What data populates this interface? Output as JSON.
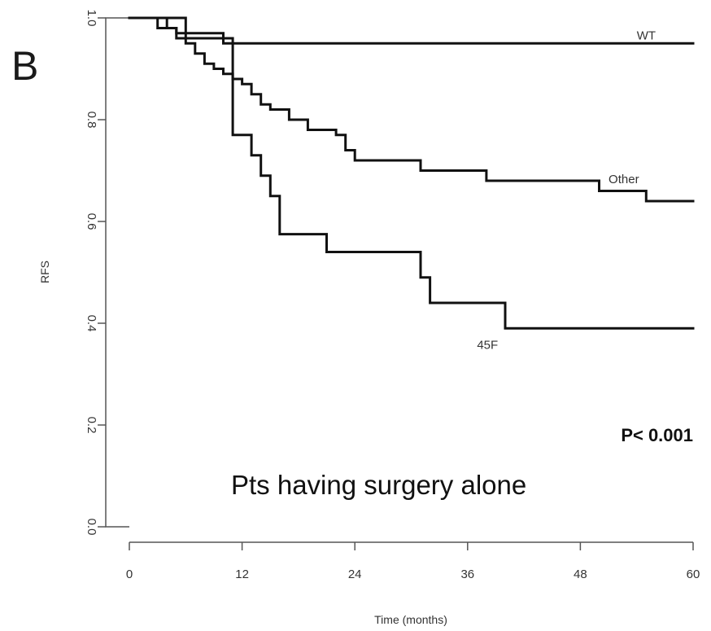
{
  "panel_label": "B",
  "caption": "Pts having surgery alone",
  "p_value": "P< 0.001",
  "chart_data": {
    "type": "line",
    "subtype": "kaplan-meier step curve",
    "title": "",
    "xlabel": "Time (months)",
    "ylabel": "RFS",
    "xlim": [
      0,
      60
    ],
    "ylim": [
      0.0,
      1.0
    ],
    "xticks": [
      0,
      12,
      24,
      36,
      48,
      60
    ],
    "xtick_labels": [
      "0",
      "12",
      "24",
      "36",
      "48",
      "60"
    ],
    "yticks": [
      0.0,
      0.2,
      0.4,
      0.6,
      0.8,
      1.0
    ],
    "ytick_labels": [
      "0.0",
      "0.2",
      "0.4",
      "0.6",
      "0.8",
      "1.0"
    ],
    "grid": false,
    "legend": "none (series labelled directly on curves)",
    "series": [
      {
        "name": "WT",
        "x": [
          0,
          3,
          3,
          5,
          5,
          10,
          10,
          60
        ],
        "y": [
          1.0,
          1.0,
          0.98,
          0.98,
          0.97,
          0.97,
          0.95,
          0.95
        ]
      },
      {
        "name": "Other",
        "x": [
          0,
          4,
          4,
          5,
          5,
          6,
          6,
          7,
          7,
          8,
          8,
          9,
          9,
          10,
          10,
          11,
          11,
          12,
          12,
          13,
          13,
          14,
          14,
          15,
          15,
          17,
          17,
          19,
          19,
          20,
          20,
          22,
          22,
          23,
          23,
          24,
          24,
          31,
          31,
          38,
          38,
          47,
          47,
          50,
          50,
          55,
          55,
          60
        ],
        "y": [
          1.0,
          1.0,
          0.98,
          0.98,
          0.96,
          0.96,
          0.95,
          0.95,
          0.93,
          0.93,
          0.91,
          0.91,
          0.9,
          0.9,
          0.89,
          0.89,
          0.88,
          0.88,
          0.87,
          0.87,
          0.85,
          0.85,
          0.83,
          0.83,
          0.82,
          0.82,
          0.8,
          0.8,
          0.78,
          0.78,
          0.78,
          0.78,
          0.77,
          0.77,
          0.74,
          0.74,
          0.72,
          0.72,
          0.7,
          0.7,
          0.68,
          0.68,
          0.68,
          0.68,
          0.66,
          0.66,
          0.64,
          0.64
        ]
      },
      {
        "name": "45F",
        "x": [
          0,
          6,
          6,
          11,
          11,
          13,
          13,
          14,
          14,
          15,
          15,
          16,
          16,
          21,
          21,
          31,
          31,
          32,
          32,
          40,
          40,
          60
        ],
        "y": [
          1.0,
          1.0,
          0.96,
          0.96,
          0.77,
          0.77,
          0.73,
          0.73,
          0.69,
          0.69,
          0.65,
          0.65,
          0.575,
          0.575,
          0.54,
          0.54,
          0.49,
          0.49,
          0.44,
          0.44,
          0.39,
          0.39
        ]
      }
    ],
    "annotations": [
      {
        "text": "WT",
        "x": 54,
        "y": 0.958
      },
      {
        "text": "Other",
        "x": 51,
        "y": 0.675
      },
      {
        "text": "45F",
        "x": 37,
        "y": 0.35
      }
    ]
  }
}
